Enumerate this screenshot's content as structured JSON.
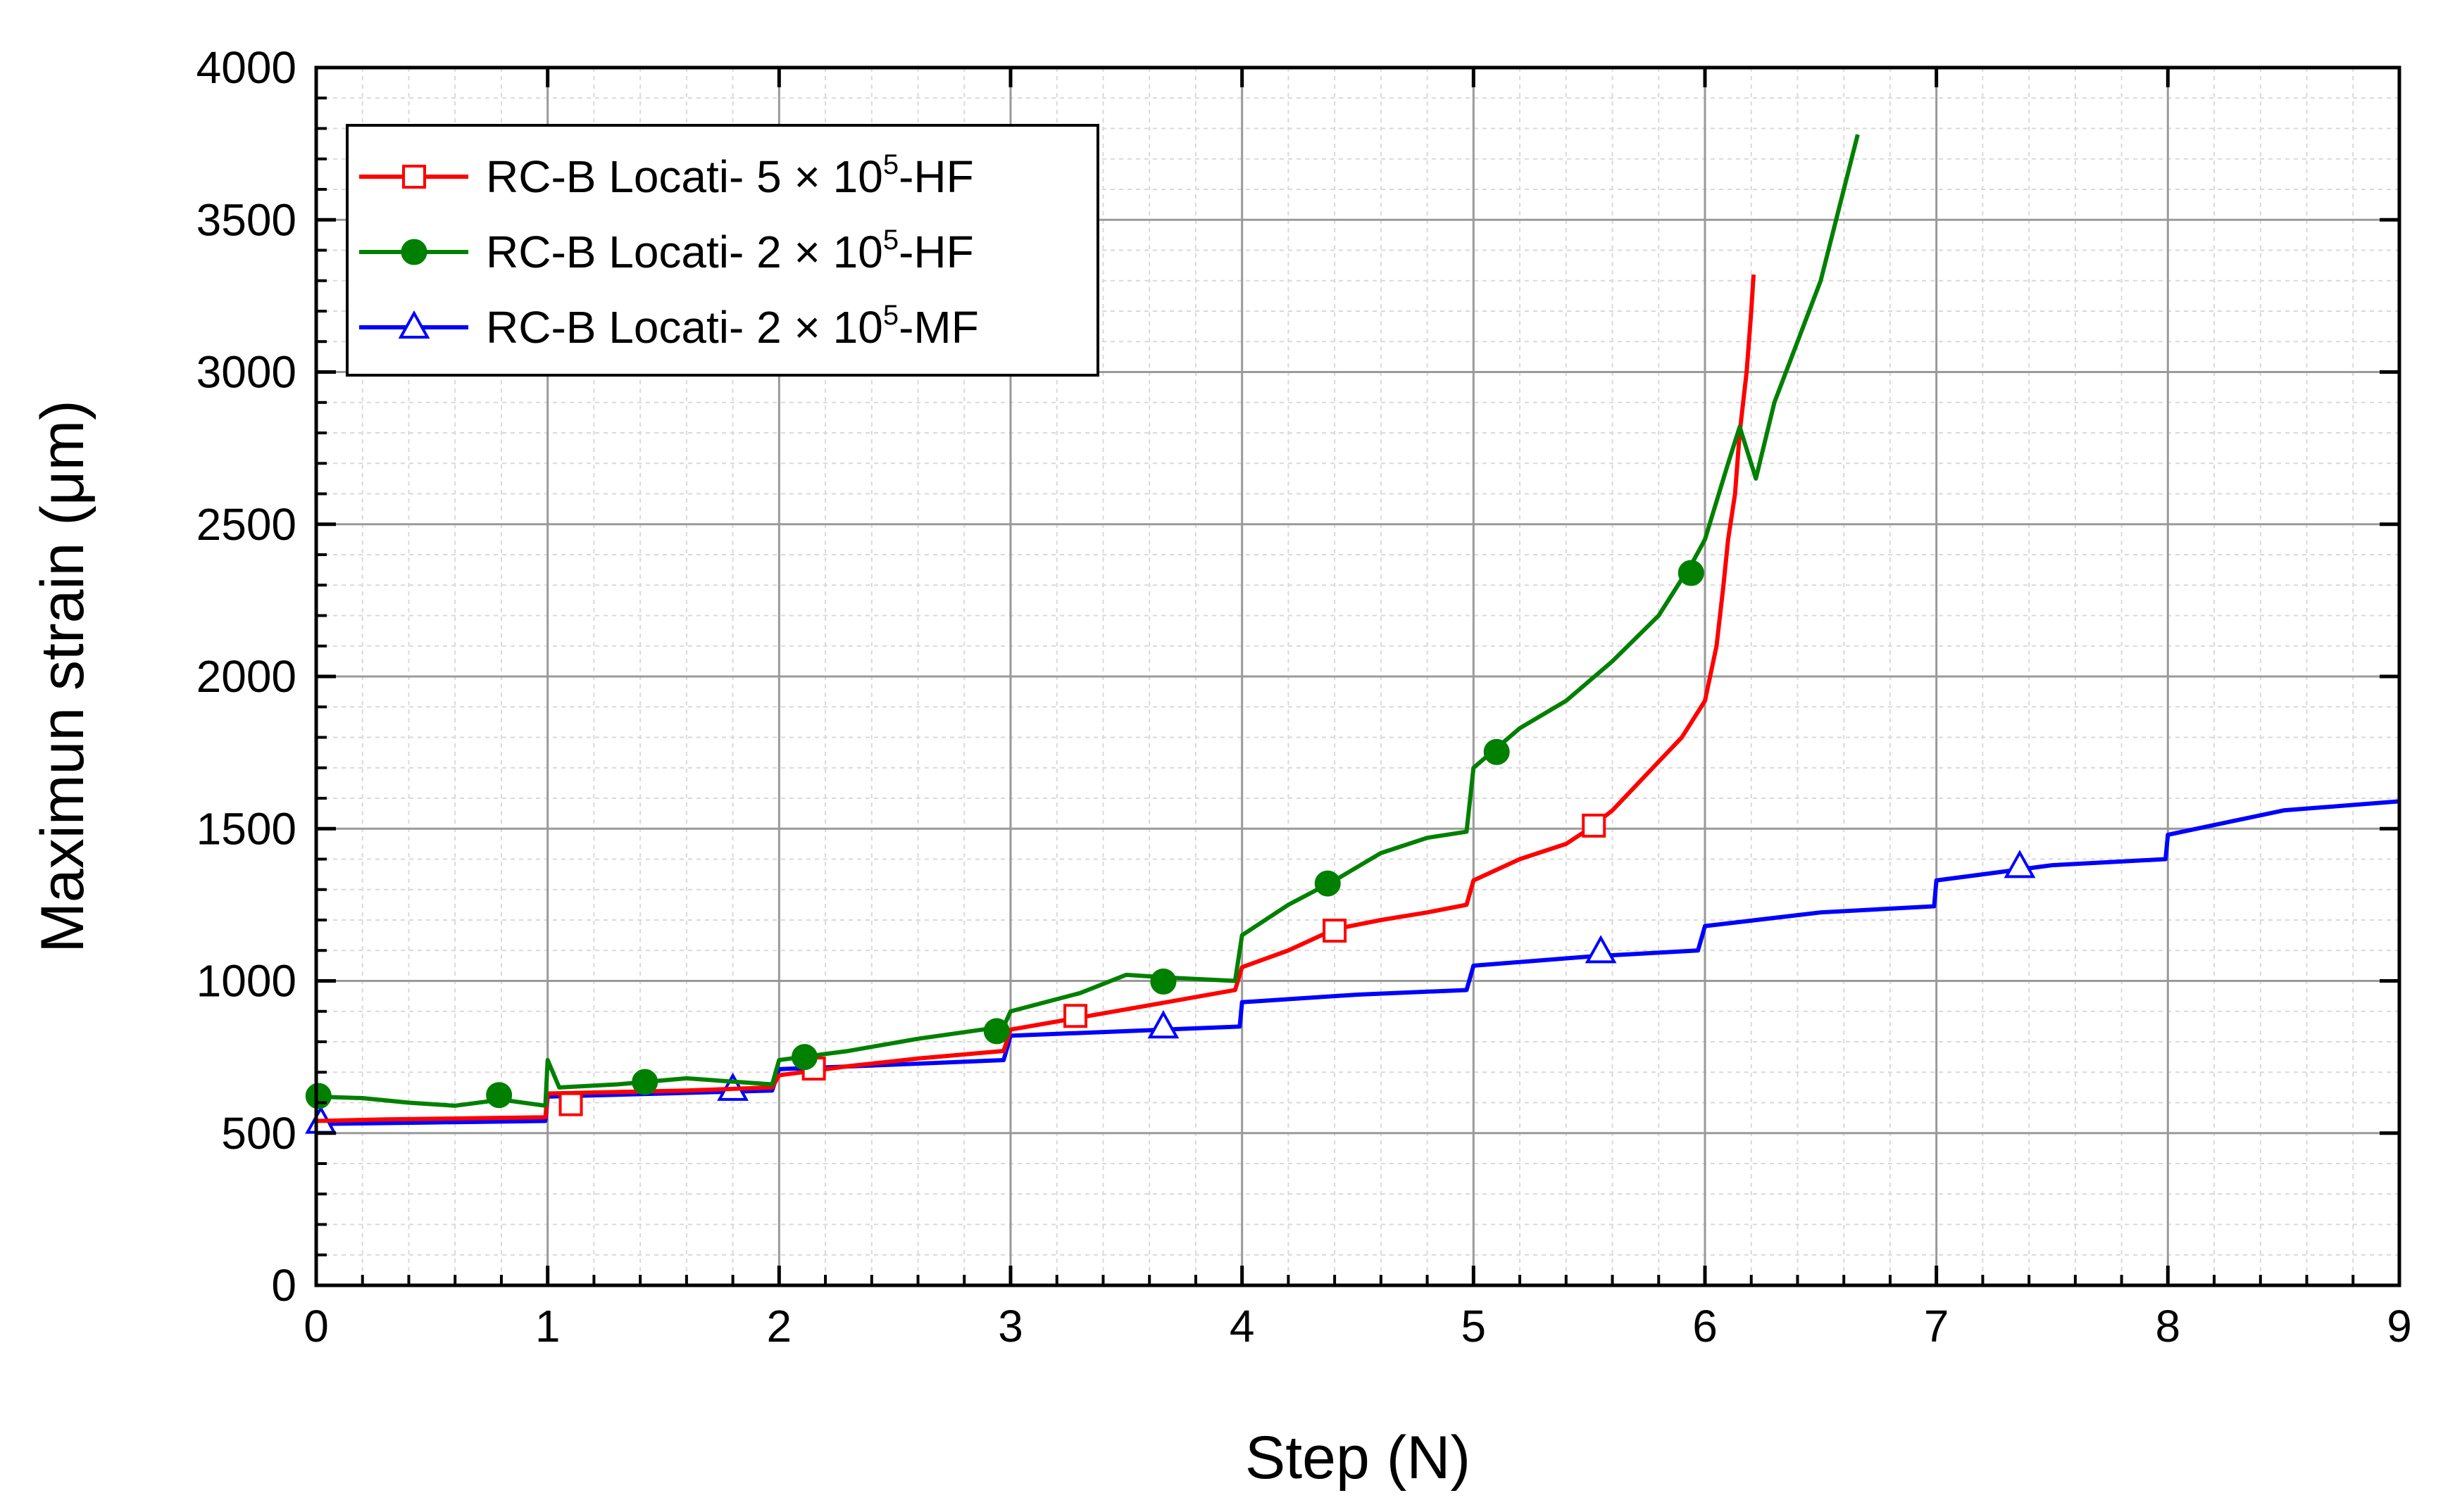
{
  "chart_data": {
    "type": "line",
    "xlabel": "Step (N)",
    "ylabel": "Maximun strain (μm)",
    "xlim": [
      0,
      9
    ],
    "ylim": [
      0,
      4000
    ],
    "x_ticks": [
      "0",
      "1",
      "2",
      "3",
      "4",
      "5",
      "6",
      "7",
      "8",
      "9"
    ],
    "y_ticks": [
      "0",
      "500",
      "1000",
      "1500",
      "2000",
      "2500",
      "3000",
      "3500",
      "4000"
    ],
    "grid": true,
    "minor_grid": true,
    "legend_position": "top-left",
    "series": [
      {
        "name_prefix": "RC-B Locati- 5 × 10",
        "name_sup": "5",
        "name_suffix": "-HF",
        "color": "#ff0000",
        "marker": "open-square",
        "x": [
          0.0,
          0.3,
          0.6,
          0.99,
          1.0,
          1.3,
          1.6,
          1.97,
          2.0,
          2.3,
          2.6,
          2.97,
          3.0,
          3.3,
          3.6,
          3.97,
          4.0,
          4.2,
          4.4,
          4.6,
          4.8,
          4.97,
          5.0,
          5.2,
          5.4,
          5.5,
          5.6,
          5.7,
          5.8,
          5.9,
          5.95,
          6.0,
          6.05,
          6.08,
          6.1,
          6.13,
          6.15,
          6.18,
          6.2,
          6.21
        ],
        "y": [
          540,
          545,
          548,
          552,
          630,
          635,
          640,
          650,
          690,
          720,
          745,
          770,
          840,
          880,
          920,
          970,
          1045,
          1100,
          1170,
          1200,
          1225,
          1250,
          1330,
          1400,
          1450,
          1500,
          1560,
          1640,
          1720,
          1800,
          1860,
          1920,
          2100,
          2300,
          2450,
          2600,
          2800,
          3000,
          3200,
          3320
        ],
        "marker_x": [
          1.1,
          2.15,
          3.28,
          4.4,
          5.52
        ],
        "marker_y": [
          595,
          712,
          885,
          1165,
          1510
        ]
      },
      {
        "name_prefix": "RC-B Locati- 2 × 10",
        "name_sup": "5",
        "name_suffix": "-HF",
        "color": "#008000",
        "marker": "filled-circle",
        "x": [
          0.0,
          0.2,
          0.4,
          0.6,
          0.8,
          0.99,
          1.0,
          1.05,
          1.3,
          1.6,
          1.97,
          2.0,
          2.3,
          2.6,
          2.97,
          3.0,
          3.3,
          3.5,
          3.7,
          3.97,
          4.0,
          4.2,
          4.4,
          4.6,
          4.8,
          4.97,
          5.0,
          5.2,
          5.4,
          5.6,
          5.8,
          5.9,
          5.95,
          6.0,
          6.1,
          6.15,
          6.22,
          6.3,
          6.4,
          6.5,
          6.6,
          6.66
        ],
        "y": [
          620,
          615,
          600,
          590,
          610,
          590,
          740,
          650,
          660,
          680,
          660,
          740,
          770,
          810,
          850,
          900,
          960,
          1020,
          1010,
          1000,
          1150,
          1250,
          1330,
          1420,
          1470,
          1490,
          1700,
          1830,
          1920,
          2050,
          2200,
          2320,
          2380,
          2450,
          2700,
          2820,
          2650,
          2900,
          3100,
          3300,
          3600,
          3780
        ],
        "marker_x": [
          0.01,
          0.79,
          1.42,
          2.11,
          2.94,
          3.66,
          4.37,
          5.1,
          5.94
        ],
        "marker_y": [
          622,
          625,
          668,
          750,
          835,
          998,
          1320,
          1752,
          2340
        ]
      },
      {
        "name_prefix": "RC-B Locati- 2 × 10",
        "name_sup": "5",
        "name_suffix": "-MF",
        "color": "#0000ff",
        "marker": "open-triangle",
        "x": [
          0.0,
          0.5,
          0.99,
          1.0,
          1.5,
          1.97,
          2.0,
          2.5,
          2.97,
          3.0,
          3.5,
          3.99,
          4.0,
          4.5,
          4.97,
          5.0,
          5.5,
          5.97,
          6.0,
          6.5,
          6.99,
          7.0,
          7.5,
          7.99,
          8.0,
          8.5,
          9.0
        ],
        "y": [
          530,
          535,
          540,
          620,
          630,
          640,
          710,
          725,
          740,
          820,
          835,
          850,
          930,
          955,
          970,
          1050,
          1080,
          1100,
          1180,
          1225,
          1245,
          1330,
          1380,
          1400,
          1480,
          1560,
          1590
        ],
        "marker_x": [
          0.02,
          1.8,
          3.66,
          5.55,
          7.36
        ],
        "marker_y": [
          535,
          643,
          848,
          1095,
          1375
        ]
      }
    ]
  }
}
